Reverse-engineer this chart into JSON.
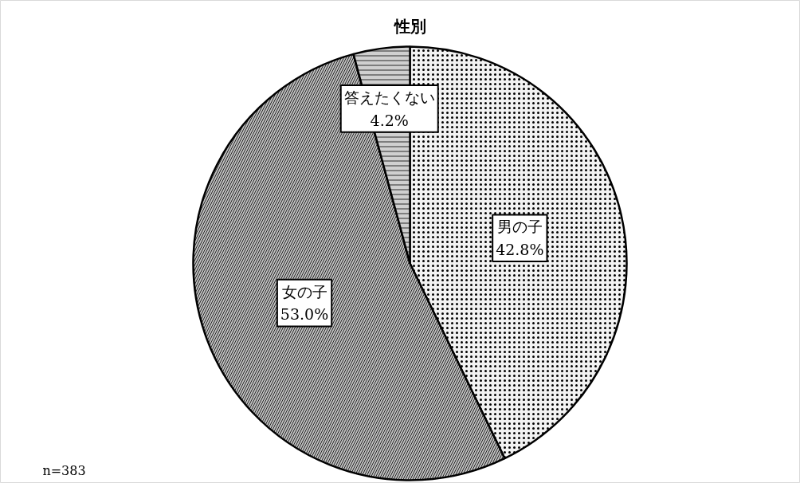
{
  "chart_data": {
    "type": "pie",
    "title": "性別",
    "categories": [
      "男の子",
      "女の子",
      "答えたくない"
    ],
    "values": [
      42.8,
      53.0,
      4.2
    ],
    "colors": [
      "#f2f2f2",
      "#bfbfbf",
      "#d0d0d0"
    ],
    "value_labels": [
      "42.8%",
      "53.0%",
      "4.2%"
    ],
    "annotations": [
      "n=383"
    ]
  }
}
